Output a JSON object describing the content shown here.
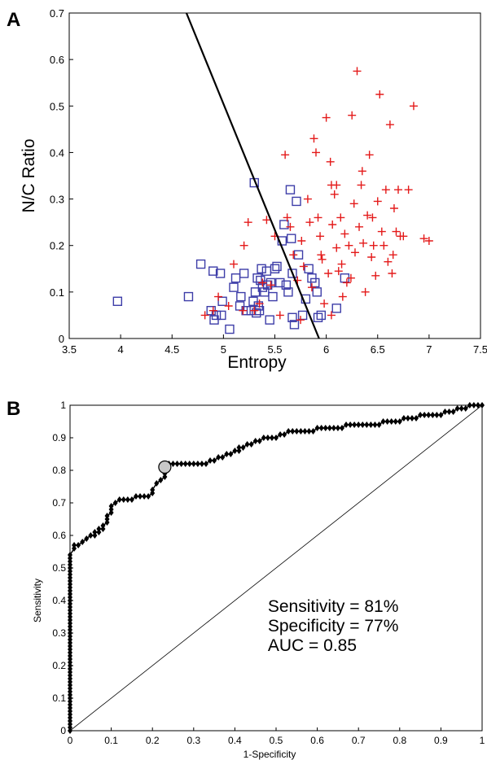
{
  "panels": {
    "a_label": "A",
    "b_label": "B"
  },
  "chart_data": [
    {
      "type": "scatter",
      "panel": "A",
      "xlabel": "Entropy",
      "ylabel": "N/C Ratio",
      "xlim": [
        3.5,
        7.5
      ],
      "ylim": [
        0,
        0.7
      ],
      "xticks": [
        "3.5",
        "4",
        "4.5",
        "5",
        "5.5",
        "6",
        "6.5",
        "7",
        "7.5"
      ],
      "yticks": [
        "0",
        "0.1",
        "0.2",
        "0.3",
        "0.4",
        "0.5",
        "0.6",
        "0.7"
      ],
      "grid": false,
      "boundary_line": {
        "x": [
          4.64,
          5.93
        ],
        "y": [
          0.7,
          0.0
        ],
        "color": "#000000"
      },
      "series": [
        {
          "marker": "square",
          "color": "#3d3da8",
          "points": [
            [
              3.97,
              0.08
            ],
            [
              4.66,
              0.09
            ],
            [
              4.78,
              0.16
            ],
            [
              4.88,
              0.06
            ],
            [
              4.9,
              0.145
            ],
            [
              4.91,
              0.04
            ],
            [
              4.93,
              0.05
            ],
            [
              4.97,
              0.14
            ],
            [
              4.98,
              0.05
            ],
            [
              4.99,
              0.08
            ],
            [
              5.06,
              0.02
            ],
            [
              5.1,
              0.11
            ],
            [
              5.12,
              0.13
            ],
            [
              5.16,
              0.07
            ],
            [
              5.17,
              0.09
            ],
            [
              5.2,
              0.14
            ],
            [
              5.22,
              0.06
            ],
            [
              5.27,
              0.06
            ],
            [
              5.29,
              0.08
            ],
            [
              5.3,
              0.335
            ],
            [
              5.31,
              0.1
            ],
            [
              5.32,
              0.055
            ],
            [
              5.33,
              0.13
            ],
            [
              5.34,
              0.07
            ],
            [
              5.35,
              0.06
            ],
            [
              5.36,
              0.125
            ],
            [
              5.37,
              0.15
            ],
            [
              5.38,
              0.11
            ],
            [
              5.4,
              0.1
            ],
            [
              5.42,
              0.145
            ],
            [
              5.45,
              0.04
            ],
            [
              5.46,
              0.12
            ],
            [
              5.48,
              0.09
            ],
            [
              5.5,
              0.15
            ],
            [
              5.52,
              0.155
            ],
            [
              5.55,
              0.12
            ],
            [
              5.57,
              0.21
            ],
            [
              5.59,
              0.245
            ],
            [
              5.61,
              0.115
            ],
            [
              5.63,
              0.1
            ],
            [
              5.65,
              0.32
            ],
            [
              5.66,
              0.215
            ],
            [
              5.67,
              0.045
            ],
            [
              5.69,
              0.03
            ],
            [
              5.71,
              0.295
            ],
            [
              5.73,
              0.18
            ],
            [
              5.77,
              0.05
            ],
            [
              5.8,
              0.085
            ],
            [
              5.83,
              0.15
            ],
            [
              5.86,
              0.13
            ],
            [
              5.89,
              0.12
            ],
            [
              5.91,
              0.1
            ],
            [
              5.92,
              0.045
            ],
            [
              5.95,
              0.05
            ],
            [
              6.1,
              0.065
            ],
            [
              6.18,
              0.13
            ],
            [
              5.67,
              0.14
            ],
            [
              5.43,
              0.115
            ]
          ]
        },
        {
          "marker": "plus",
          "color": "#e41a1a",
          "points": [
            [
              4.82,
              0.05
            ],
            [
              4.9,
              0.06
            ],
            [
              4.95,
              0.09
            ],
            [
              5.05,
              0.07
            ],
            [
              5.1,
              0.16
            ],
            [
              5.19,
              0.06
            ],
            [
              5.2,
              0.2
            ],
            [
              5.24,
              0.25
            ],
            [
              5.3,
              0.06
            ],
            [
              5.35,
              0.075
            ],
            [
              5.38,
              0.12
            ],
            [
              5.42,
              0.255
            ],
            [
              5.46,
              0.115
            ],
            [
              5.5,
              0.22
            ],
            [
              5.55,
              0.05
            ],
            [
              5.6,
              0.395
            ],
            [
              5.62,
              0.26
            ],
            [
              5.65,
              0.24
            ],
            [
              5.68,
              0.18
            ],
            [
              5.72,
              0.125
            ],
            [
              5.75,
              0.04
            ],
            [
              5.76,
              0.21
            ],
            [
              5.78,
              0.155
            ],
            [
              5.82,
              0.3
            ],
            [
              5.84,
              0.25
            ],
            [
              5.86,
              0.11
            ],
            [
              5.88,
              0.43
            ],
            [
              5.9,
              0.4
            ],
            [
              5.92,
              0.26
            ],
            [
              5.94,
              0.22
            ],
            [
              5.96,
              0.17
            ],
            [
              5.98,
              0.075
            ],
            [
              6.0,
              0.475
            ],
            [
              6.02,
              0.14
            ],
            [
              6.04,
              0.38
            ],
            [
              6.05,
              0.33
            ],
            [
              6.06,
              0.245
            ],
            [
              6.08,
              0.31
            ],
            [
              6.1,
              0.195
            ],
            [
              6.12,
              0.145
            ],
            [
              6.14,
              0.26
            ],
            [
              6.16,
              0.09
            ],
            [
              6.18,
              0.225
            ],
            [
              6.2,
              0.12
            ],
            [
              6.22,
              0.2
            ],
            [
              6.24,
              0.13
            ],
            [
              6.25,
              0.48
            ],
            [
              6.27,
              0.29
            ],
            [
              6.28,
              0.185
            ],
            [
              6.3,
              0.575
            ],
            [
              6.32,
              0.24
            ],
            [
              6.34,
              0.33
            ],
            [
              6.36,
              0.205
            ],
            [
              6.38,
              0.1
            ],
            [
              6.4,
              0.265
            ],
            [
              6.42,
              0.395
            ],
            [
              6.44,
              0.175
            ],
            [
              6.46,
              0.2
            ],
            [
              6.48,
              0.135
            ],
            [
              6.5,
              0.295
            ],
            [
              6.52,
              0.525
            ],
            [
              6.54,
              0.23
            ],
            [
              6.56,
              0.2
            ],
            [
              6.58,
              0.32
            ],
            [
              6.6,
              0.165
            ],
            [
              6.62,
              0.46
            ],
            [
              6.64,
              0.14
            ],
            [
              6.66,
              0.28
            ],
            [
              6.68,
              0.23
            ],
            [
              6.7,
              0.32
            ],
            [
              6.72,
              0.22
            ],
            [
              6.75,
              0.22
            ],
            [
              6.8,
              0.32
            ],
            [
              6.85,
              0.5
            ],
            [
              6.95,
              0.215
            ],
            [
              7.0,
              0.21
            ],
            [
              6.35,
              0.36
            ],
            [
              6.45,
              0.26
            ],
            [
              6.1,
              0.33
            ],
            [
              5.95,
              0.18
            ],
            [
              6.05,
              0.05
            ],
            [
              6.15,
              0.16
            ],
            [
              6.65,
              0.18
            ]
          ]
        }
      ]
    },
    {
      "type": "line",
      "panel": "B",
      "xlabel": "1-Specificity",
      "ylabel": "Sensitivity",
      "xlim": [
        0,
        1
      ],
      "ylim": [
        0,
        1
      ],
      "xticks": [
        "0",
        "0.1",
        "0.2",
        "0.3",
        "0.4",
        "0.5",
        "0.6",
        "0.7",
        "0.8",
        "0.9",
        "1"
      ],
      "yticks": [
        "0",
        "0.1",
        "0.2",
        "0.3",
        "0.4",
        "0.5",
        "0.6",
        "0.7",
        "0.8",
        "0.9",
        "1"
      ],
      "grid": false,
      "chance_line": {
        "x": [
          0,
          1
        ],
        "y": [
          0,
          1
        ]
      },
      "operating_point": {
        "x": 0.23,
        "y": 0.81,
        "color": "#c8c8c8"
      },
      "series": [
        {
          "marker": "diamond",
          "color": "#000000",
          "x": [
            0,
            0,
            0,
            0,
            0,
            0,
            0,
            0,
            0,
            0,
            0,
            0,
            0,
            0,
            0,
            0,
            0,
            0,
            0,
            0,
            0,
            0,
            0,
            0,
            0,
            0,
            0,
            0,
            0,
            0,
            0,
            0,
            0,
            0,
            0,
            0,
            0,
            0,
            0,
            0,
            0,
            0,
            0,
            0,
            0,
            0,
            0,
            0,
            0,
            0,
            0,
            0,
            0,
            0,
            0,
            0.01,
            0.01,
            0.02,
            0.03,
            0.04,
            0.05,
            0.06,
            0.06,
            0.07,
            0.07,
            0.08,
            0.08,
            0.09,
            0.09,
            0.09,
            0.1,
            0.1,
            0.1,
            0.11,
            0.12,
            0.13,
            0.14,
            0.15,
            0.16,
            0.17,
            0.18,
            0.19,
            0.2,
            0.2,
            0.21,
            0.22,
            0.23,
            0.23,
            0.23,
            0.23,
            0.24,
            0.25,
            0.26,
            0.27,
            0.28,
            0.29,
            0.3,
            0.31,
            0.32,
            0.33,
            0.34,
            0.35,
            0.36,
            0.37,
            0.38,
            0.39,
            0.4,
            0.41,
            0.41,
            0.42,
            0.43,
            0.44,
            0.45,
            0.46,
            0.47,
            0.48,
            0.49,
            0.5,
            0.51,
            0.52,
            0.53,
            0.54,
            0.55,
            0.56,
            0.57,
            0.58,
            0.59,
            0.6,
            0.61,
            0.62,
            0.63,
            0.64,
            0.65,
            0.66,
            0.67,
            0.68,
            0.69,
            0.7,
            0.71,
            0.72,
            0.73,
            0.74,
            0.75,
            0.76,
            0.77,
            0.78,
            0.79,
            0.8,
            0.81,
            0.82,
            0.83,
            0.84,
            0.85,
            0.86,
            0.87,
            0.88,
            0.89,
            0.9,
            0.91,
            0.92,
            0.93,
            0.94,
            0.95,
            0.96,
            0.97,
            0.98,
            0.99,
            1.0
          ],
          "y": [
            0,
            0.01,
            0.02,
            0.03,
            0.04,
            0.05,
            0.06,
            0.07,
            0.08,
            0.09,
            0.1,
            0.11,
            0.12,
            0.13,
            0.14,
            0.15,
            0.16,
            0.17,
            0.18,
            0.19,
            0.2,
            0.21,
            0.22,
            0.23,
            0.24,
            0.25,
            0.26,
            0.27,
            0.28,
            0.29,
            0.3,
            0.31,
            0.32,
            0.33,
            0.34,
            0.35,
            0.36,
            0.37,
            0.38,
            0.39,
            0.4,
            0.41,
            0.42,
            0.43,
            0.44,
            0.45,
            0.46,
            0.47,
            0.48,
            0.49,
            0.5,
            0.51,
            0.52,
            0.53,
            0.54,
            0.56,
            0.57,
            0.57,
            0.58,
            0.59,
            0.6,
            0.6,
            0.61,
            0.61,
            0.62,
            0.62,
            0.63,
            0.64,
            0.65,
            0.66,
            0.67,
            0.68,
            0.69,
            0.7,
            0.71,
            0.71,
            0.71,
            0.71,
            0.72,
            0.72,
            0.72,
            0.72,
            0.73,
            0.74,
            0.76,
            0.77,
            0.78,
            0.79,
            0.8,
            0.81,
            0.82,
            0.82,
            0.82,
            0.82,
            0.82,
            0.82,
            0.82,
            0.82,
            0.82,
            0.82,
            0.83,
            0.83,
            0.84,
            0.84,
            0.85,
            0.85,
            0.86,
            0.86,
            0.87,
            0.87,
            0.88,
            0.88,
            0.89,
            0.89,
            0.9,
            0.9,
            0.9,
            0.9,
            0.91,
            0.91,
            0.92,
            0.92,
            0.92,
            0.92,
            0.92,
            0.92,
            0.92,
            0.93,
            0.93,
            0.93,
            0.93,
            0.93,
            0.93,
            0.93,
            0.94,
            0.94,
            0.94,
            0.94,
            0.94,
            0.94,
            0.94,
            0.94,
            0.94,
            0.95,
            0.95,
            0.95,
            0.95,
            0.95,
            0.96,
            0.96,
            0.96,
            0.96,
            0.97,
            0.97,
            0.97,
            0.97,
            0.97,
            0.97,
            0.98,
            0.98,
            0.98,
            0.99,
            0.99,
            0.99,
            1.0,
            1.0,
            1.0,
            1.0
          ]
        }
      ],
      "annotations": [
        "Sensitivity = 81%",
        "Specificity = 77%",
        "AUC = 0.85"
      ]
    }
  ]
}
